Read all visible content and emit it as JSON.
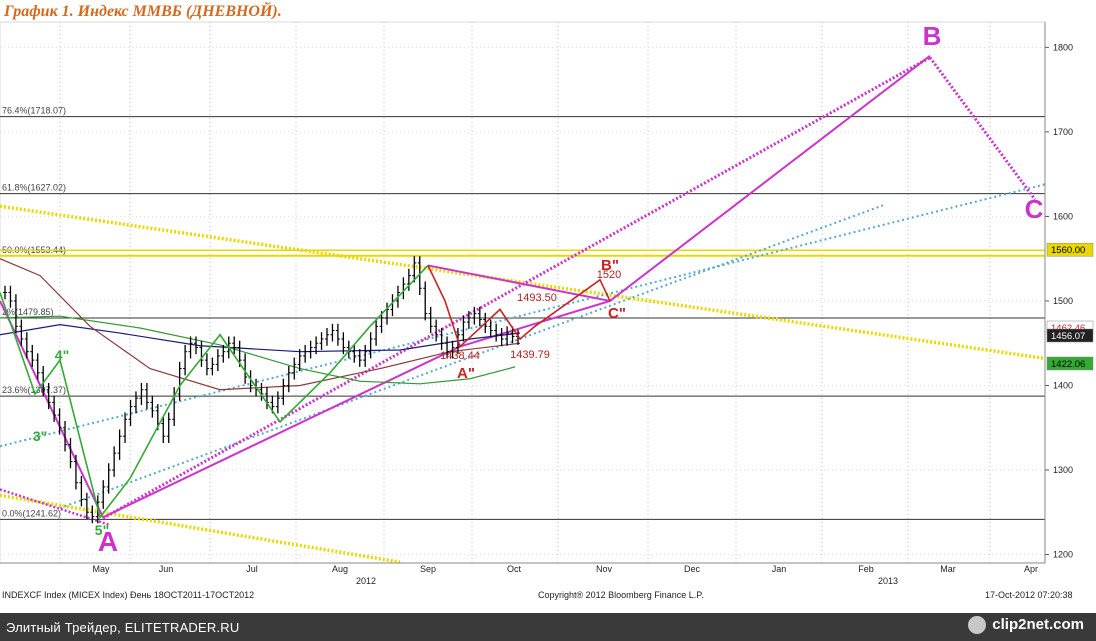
{
  "header": {
    "title": "График 1.   Индекс ММВБ (ДНЕВНОЙ)."
  },
  "footer": {
    "info": "INDEXCF Index (MICEX Index) Ðень 18OCT2011-17OCT2012",
    "copyright": "Copyright® 2012 Bloomberg Finance L.P.",
    "timestamp": "17-Oct-2012 07:20:38",
    "site": "Элитный Трейдер, ELITETRADER.RU",
    "brand": "clip2net.com"
  },
  "colors": {
    "title": "#d2691e",
    "price": "#000000",
    "magenta": "#cc33cc",
    "cyan": "#3399cc",
    "yellow": "#e8d800",
    "green": "#33aa33",
    "red": "#cc2222",
    "navy": "#1a1a7a",
    "brown": "#8b3a3a"
  },
  "chart_data": {
    "type": "line",
    "ylim": [
      1190,
      1830
    ],
    "yticks": [
      1200,
      1300,
      1400,
      1500,
      1600,
      1700,
      1800
    ],
    "xlabels": [
      "May",
      "Jun",
      "Jul",
      "Aug",
      "Sep",
      "Oct",
      "Nov",
      "Dec",
      "Jan",
      "Feb",
      "Mar",
      "Apr"
    ],
    "year_labels": [
      "2012",
      "2013"
    ],
    "fib_levels": [
      {
        "label": "76.4%(1718.07)",
        "value": 1718.07
      },
      {
        "label": "61.8%(1627.02)",
        "value": 1627.02
      },
      {
        "label": "50.0%(1553.44)",
        "value": 1553.44
      },
      {
        "label": "2%(1479.85)",
        "value": 1479.85
      },
      {
        "label": "23.6%(1387.37)",
        "value": 1387.37
      },
      {
        "label": "0.0%(1241.62)",
        "value": 1241.62
      }
    ],
    "right_labels": [
      {
        "label": "1560.00",
        "value": 1560.0
      },
      {
        "label": "1462.46",
        "value": 1462.46
      },
      {
        "label": "1456.07",
        "value": 1456.07
      },
      {
        "label": "1422.06",
        "value": 1422.06
      }
    ],
    "wave_labels": [
      {
        "text": "A",
        "color": "magenta"
      },
      {
        "text": "B",
        "color": "magenta"
      },
      {
        "text": "C",
        "color": "magenta"
      },
      {
        "text": "5\"",
        "color": "green"
      },
      {
        "text": "4\"",
        "color": "green"
      },
      {
        "text": "3\"",
        "color": "green"
      },
      {
        "text": "A\"",
        "color": "red"
      },
      {
        "text": "B\"",
        "color": "red"
      },
      {
        "text": "C\"",
        "color": "red"
      }
    ],
    "annotations": [
      "1438.44",
      "1439.79",
      "1493.50",
      "1520"
    ],
    "price_closes": [
      1510,
      1500,
      1470,
      1455,
      1440,
      1430,
      1415,
      1395,
      1380,
      1365,
      1350,
      1330,
      1310,
      1285,
      1265,
      1250,
      1245,
      1262,
      1280,
      1300,
      1320,
      1340,
      1360,
      1375,
      1385,
      1395,
      1380,
      1370,
      1355,
      1340,
      1360,
      1390,
      1420,
      1440,
      1450,
      1445,
      1430,
      1420,
      1425,
      1435,
      1440,
      1450,
      1445,
      1430,
      1410,
      1400,
      1395,
      1390,
      1380,
      1375,
      1385,
      1400,
      1415,
      1425,
      1435,
      1440,
      1445,
      1450,
      1455,
      1460,
      1465,
      1455,
      1445,
      1440,
      1435,
      1430,
      1440,
      1455,
      1470,
      1480,
      1490,
      1500,
      1510,
      1520,
      1530,
      1545,
      1515,
      1485,
      1470,
      1460,
      1450,
      1440,
      1445,
      1460,
      1475,
      1480,
      1485,
      1478,
      1470,
      1465,
      1460,
      1455,
      1462,
      1458,
      1456
    ]
  }
}
